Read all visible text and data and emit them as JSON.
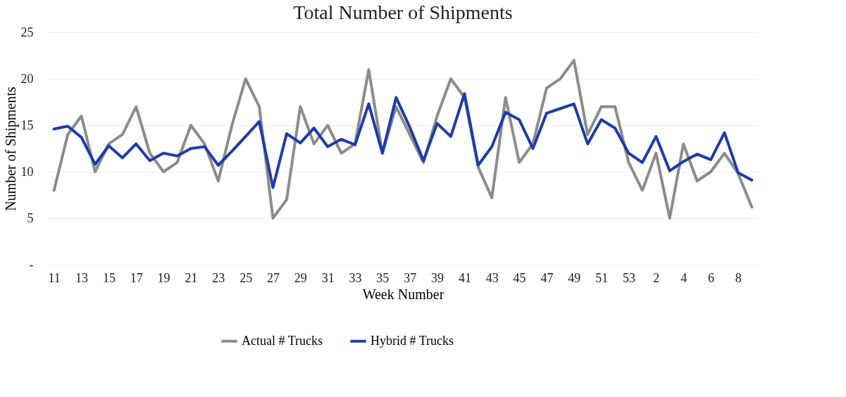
{
  "chart_data": {
    "type": "line",
    "title": "Total Number of Shipments",
    "xlabel": "Week Number",
    "ylabel": "Number of Shipments",
    "categories": [
      "11",
      null,
      "13",
      null,
      "15",
      null,
      "17",
      null,
      "19",
      null,
      "21",
      null,
      "23",
      null,
      "25",
      null,
      "27",
      null,
      "29",
      null,
      "31",
      null,
      "33",
      null,
      "35",
      null,
      "37",
      null,
      "39",
      null,
      "41",
      null,
      "43",
      null,
      "45",
      null,
      "47",
      null,
      "49",
      null,
      "51",
      null,
      "53",
      null,
      "2",
      null,
      "4",
      null,
      "6",
      null,
      "8",
      null
    ],
    "series": [
      {
        "name": "Actual # Trucks",
        "color": "#8c8c8c",
        "values": [
          8,
          14,
          16,
          10,
          13,
          14,
          17,
          12,
          10,
          11,
          15,
          13,
          9,
          15,
          20,
          17,
          5,
          7,
          17,
          13,
          15,
          12,
          13,
          21,
          12,
          17,
          14,
          11,
          16,
          20,
          18,
          10.5,
          7.2,
          18,
          11,
          13,
          19,
          20,
          22,
          14,
          17,
          17,
          11,
          8,
          12,
          5,
          13,
          9,
          10,
          12,
          9.8,
          6.2
        ]
      },
      {
        "name": "Hybrid # Trucks",
        "color": "#1f3bab",
        "values": [
          14.6,
          14.9,
          13.7,
          10.8,
          12.8,
          11.5,
          13,
          11.2,
          12,
          11.7,
          12.5,
          12.7,
          10.7,
          12.2,
          13.8,
          15.4,
          8.3,
          14.1,
          13.1,
          14.7,
          12.7,
          13.5,
          12.9,
          17.3,
          12,
          18,
          14.8,
          11.2,
          15.2,
          13.8,
          18.4,
          10.7,
          12.7,
          16.4,
          15.6,
          12.5,
          16.3,
          16.8,
          17.3,
          13,
          15.6,
          14.7,
          12,
          11,
          13.8,
          10.1,
          11.1,
          11.9,
          11.3,
          14.2,
          9.9,
          9.1
        ]
      }
    ],
    "ylim": [
      0,
      25
    ],
    "yticks": [
      {
        "value": 0,
        "label": "-"
      },
      5,
      10,
      15,
      20,
      25
    ],
    "grid": "y",
    "legend": "bottom",
    "marker": "none",
    "line_style": "solid"
  }
}
